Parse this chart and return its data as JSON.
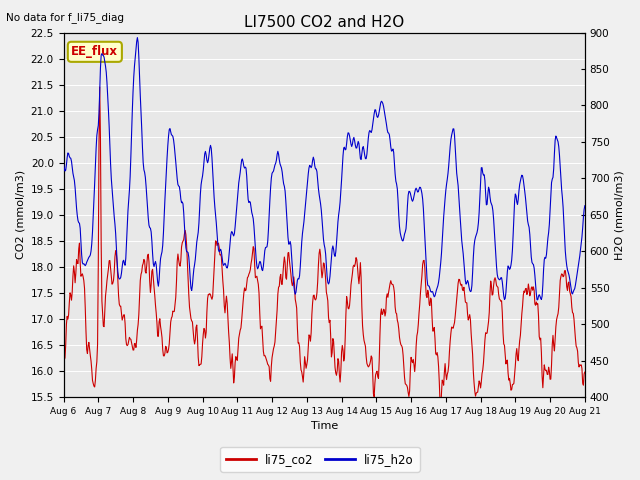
{
  "title": "LI7500 CO2 and H2O",
  "top_left_text": "No data for f_li75_diag",
  "annotation_text": "EE_flux",
  "xlabel": "Time",
  "ylabel_left": "CO2 (mmol/m3)",
  "ylabel_right": "H2O (mmol/m3)",
  "ylim_left": [
    15.5,
    22.5
  ],
  "ylim_right": [
    400,
    900
  ],
  "co2_color": "#cc0000",
  "h2o_color": "#0000cc",
  "fig_bg_color": "#f0f0f0",
  "plot_bg_color": "#e8e8e8",
  "tick_labels": [
    "Aug 6",
    "Aug 7",
    "Aug 8",
    "Aug 9",
    "Aug 10",
    "Aug 11",
    "Aug 12",
    "Aug 13",
    "Aug 14",
    "Aug 15",
    "Aug 16",
    "Aug 17",
    "Aug 18",
    "Aug 19",
    "Aug 20",
    "Aug 21"
  ],
  "legend_co2": "li75_co2",
  "legend_h2o": "li75_h2o",
  "annotation_box_color": "#ffffcc",
  "annotation_box_edge": "#aaa800"
}
